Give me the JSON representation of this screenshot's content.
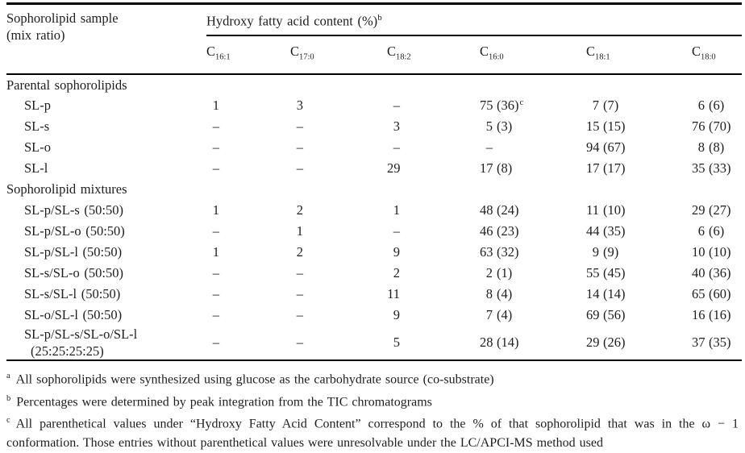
{
  "colors": {
    "background": "#ffffff",
    "text": "#1e1e1e",
    "rule": "#000000"
  },
  "table": {
    "header_left": {
      "line1": "Sophorolipid sample",
      "line2": "(mix ratio)"
    },
    "spanner": {
      "text": "Hydroxy fatty acid content (%)",
      "sup": "b"
    },
    "columns": [
      {
        "base": "C",
        "sub": "16:1"
      },
      {
        "base": "C",
        "sub": "17:0"
      },
      {
        "base": "C",
        "sub": "18:2"
      },
      {
        "base": "C",
        "sub": "16:0"
      },
      {
        "base": "C",
        "sub": "18:1"
      },
      {
        "base": "C",
        "sub": "18:0"
      }
    ],
    "rows": [
      {
        "type": "section",
        "label": "Parental sophorolipids"
      },
      {
        "type": "data",
        "label": "SL-p",
        "cells": [
          {
            "n": "1"
          },
          {
            "n": "3"
          },
          {
            "n": "–"
          },
          {
            "n": "75",
            "p": "(36)",
            "s": "c"
          },
          {
            "n": "7",
            "p": "(7)"
          },
          {
            "n": "6",
            "p": "(6)"
          }
        ]
      },
      {
        "type": "data",
        "label": "SL-s",
        "cells": [
          {
            "n": "–"
          },
          {
            "n": "–"
          },
          {
            "n": "3"
          },
          {
            "n": "5",
            "p": "(3)"
          },
          {
            "n": "15",
            "p": "(15)"
          },
          {
            "n": "76",
            "p": "(70)"
          }
        ]
      },
      {
        "type": "data",
        "label": "SL-o",
        "cells": [
          {
            "n": "–"
          },
          {
            "n": "–"
          },
          {
            "n": "–"
          },
          {
            "n": "–"
          },
          {
            "n": "94",
            "p": "(67)"
          },
          {
            "n": "8",
            "p": "(8)"
          }
        ]
      },
      {
        "type": "data",
        "label": "SL-l",
        "cells": [
          {
            "n": "–"
          },
          {
            "n": "–"
          },
          {
            "n": "29"
          },
          {
            "n": "17",
            "p": "(8)"
          },
          {
            "n": "17",
            "p": "(17)"
          },
          {
            "n": "35",
            "p": "(33)"
          }
        ]
      },
      {
        "type": "section",
        "label": "Sophorolipid mixtures"
      },
      {
        "type": "data",
        "label": "SL-p/SL-s (50:50)",
        "cells": [
          {
            "n": "1"
          },
          {
            "n": "2"
          },
          {
            "n": "1"
          },
          {
            "n": "48",
            "p": "(24)"
          },
          {
            "n": "11",
            "p": "(10)"
          },
          {
            "n": "29",
            "p": "(27)"
          }
        ]
      },
      {
        "type": "data",
        "label": "SL-p/SL-o (50:50)",
        "cells": [
          {
            "n": "–"
          },
          {
            "n": "1"
          },
          {
            "n": "–"
          },
          {
            "n": "46",
            "p": "(23)"
          },
          {
            "n": "44",
            "p": "(35)"
          },
          {
            "n": "6",
            "p": "(6)"
          }
        ]
      },
      {
        "type": "data",
        "label": "SL-p/SL-l (50:50)",
        "cells": [
          {
            "n": "1"
          },
          {
            "n": "2"
          },
          {
            "n": "9"
          },
          {
            "n": "63",
            "p": "(32)"
          },
          {
            "n": "9",
            "p": "(9)"
          },
          {
            "n": "10",
            "p": "(10)"
          }
        ]
      },
      {
        "type": "data",
        "label": "SL-s/SL-o (50:50)",
        "cells": [
          {
            "n": "–"
          },
          {
            "n": "–"
          },
          {
            "n": "2"
          },
          {
            "n": "2",
            "p": "(1)"
          },
          {
            "n": "55",
            "p": "(45)"
          },
          {
            "n": "40",
            "p": "(36)"
          }
        ]
      },
      {
        "type": "data",
        "label": "SL-s/SL-l (50:50)",
        "cells": [
          {
            "n": "–"
          },
          {
            "n": "–"
          },
          {
            "n": "11"
          },
          {
            "n": "8",
            "p": "(4)"
          },
          {
            "n": "14",
            "p": "(14)"
          },
          {
            "n": "65",
            "p": "(60)"
          }
        ]
      },
      {
        "type": "data",
        "label": "SL-o/SL-l (50:50)",
        "cells": [
          {
            "n": "–"
          },
          {
            "n": "–"
          },
          {
            "n": "9"
          },
          {
            "n": "7",
            "p": "(4)"
          },
          {
            "n": "69",
            "p": "(56)"
          },
          {
            "n": "16",
            "p": "(16)"
          }
        ]
      },
      {
        "type": "data",
        "label": "SL-p/SL-s/SL-o/SL-l",
        "label2": "(25:25:25:25)",
        "cells": [
          {
            "n": "–"
          },
          {
            "n": "–"
          },
          {
            "n": "5"
          },
          {
            "n": "28",
            "p": "(14)"
          },
          {
            "n": "29",
            "p": "(26)"
          },
          {
            "n": "37",
            "p": "(35)"
          }
        ]
      }
    ]
  },
  "footnotes": [
    {
      "marker": "a",
      "text": "All sophorolipids were synthesized using glucose as the carbohydrate source (co-substrate)"
    },
    {
      "marker": "b",
      "text": "Percentages were determined by peak integration from the TIC chromatograms"
    },
    {
      "marker": "c",
      "text": "All parenthetical values under “Hydroxy Fatty Acid Content” correspond to the % of that sophorolipid that was in the ω − 1 conformation. Those entries without parenthetical values were unresolvable under the LC/APCI-MS method used"
    }
  ]
}
